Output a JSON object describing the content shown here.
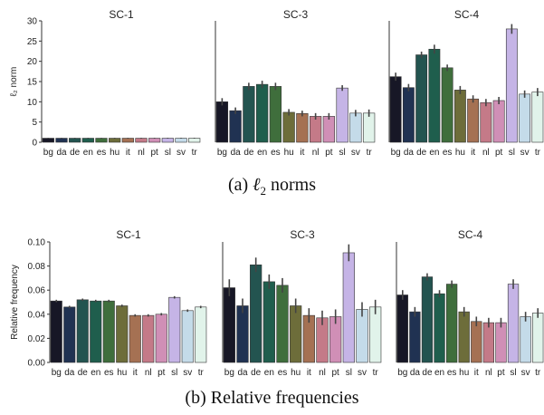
{
  "captions": {
    "a": "(a) ℓ₂ norms",
    "a_letter": "(a)",
    "a_rest": "norms",
    "b": "(b) Relative frequencies"
  },
  "colors": [
    "#171726",
    "#203252",
    "#235450",
    "#1f5e4d",
    "#3f6e3c",
    "#6d6d3a",
    "#a57153",
    "#c47a88",
    "#d08fb6",
    "#c5b4e6",
    "#c4dbe9",
    "#e1f3ea"
  ],
  "chart_data": [
    {
      "type": "bar",
      "row": "a",
      "ylabel": "ℓ₂ norm",
      "ylim": [
        0,
        30
      ],
      "yticks": [
        0,
        5,
        10,
        15,
        20,
        25,
        30
      ],
      "categories": [
        "bg",
        "da",
        "de",
        "en",
        "es",
        "hu",
        "it",
        "nl",
        "pt",
        "sl",
        "sv",
        "tr"
      ],
      "panels": [
        {
          "title": "SC-1",
          "values": [
            1.0,
            1.0,
            1.0,
            1.0,
            1.0,
            1.0,
            1.0,
            1.0,
            1.0,
            1.0,
            1.0,
            1.0
          ],
          "errors": [
            0.1,
            0.1,
            0.1,
            0.1,
            0.1,
            0.1,
            0.1,
            0.1,
            0.1,
            0.1,
            0.1,
            0.1
          ]
        },
        {
          "title": "SC-3",
          "values": [
            10.0,
            7.8,
            13.8,
            14.3,
            13.8,
            7.4,
            7.1,
            6.4,
            6.4,
            13.4,
            7.2,
            7.2
          ],
          "errors": [
            0.9,
            0.8,
            0.9,
            0.9,
            0.9,
            0.8,
            0.7,
            0.8,
            0.8,
            0.7,
            0.8,
            0.9
          ]
        },
        {
          "title": "SC-4",
          "values": [
            16.2,
            13.5,
            21.6,
            23.0,
            18.4,
            12.9,
            10.7,
            9.8,
            10.3,
            28.0,
            11.9,
            12.4
          ],
          "errors": [
            1.0,
            0.9,
            0.8,
            1.1,
            0.8,
            1.0,
            0.9,
            0.9,
            0.9,
            1.2,
            0.9,
            1.0
          ]
        }
      ]
    },
    {
      "type": "bar",
      "row": "b",
      "ylabel": "Relative frequency",
      "ylim": [
        0,
        0.1
      ],
      "yticks": [
        "0.00",
        "0.02",
        "0.04",
        "0.06",
        "0.08",
        "0.10"
      ],
      "categories": [
        "bg",
        "da",
        "de",
        "en",
        "es",
        "hu",
        "it",
        "nl",
        "pt",
        "sl",
        "sv",
        "tr"
      ],
      "panels": [
        {
          "title": "SC-1",
          "values": [
            0.051,
            0.046,
            0.052,
            0.051,
            0.051,
            0.047,
            0.039,
            0.039,
            0.04,
            0.054,
            0.043,
            0.046
          ],
          "errors": [
            0.001,
            0.001,
            0.001,
            0.001,
            0.001,
            0.001,
            0.001,
            0.001,
            0.001,
            0.001,
            0.001,
            0.001
          ]
        },
        {
          "title": "SC-3",
          "values": [
            0.062,
            0.047,
            0.081,
            0.067,
            0.064,
            0.047,
            0.039,
            0.037,
            0.038,
            0.091,
            0.044,
            0.046
          ],
          "errors": [
            0.007,
            0.006,
            0.006,
            0.006,
            0.006,
            0.006,
            0.006,
            0.006,
            0.006,
            0.007,
            0.006,
            0.006
          ]
        },
        {
          "title": "SC-4",
          "values": [
            0.056,
            0.042,
            0.071,
            0.057,
            0.065,
            0.042,
            0.034,
            0.033,
            0.033,
            0.065,
            0.038,
            0.041
          ],
          "errors": [
            0.004,
            0.004,
            0.003,
            0.003,
            0.003,
            0.004,
            0.004,
            0.004,
            0.004,
            0.004,
            0.004,
            0.004
          ]
        }
      ]
    }
  ]
}
